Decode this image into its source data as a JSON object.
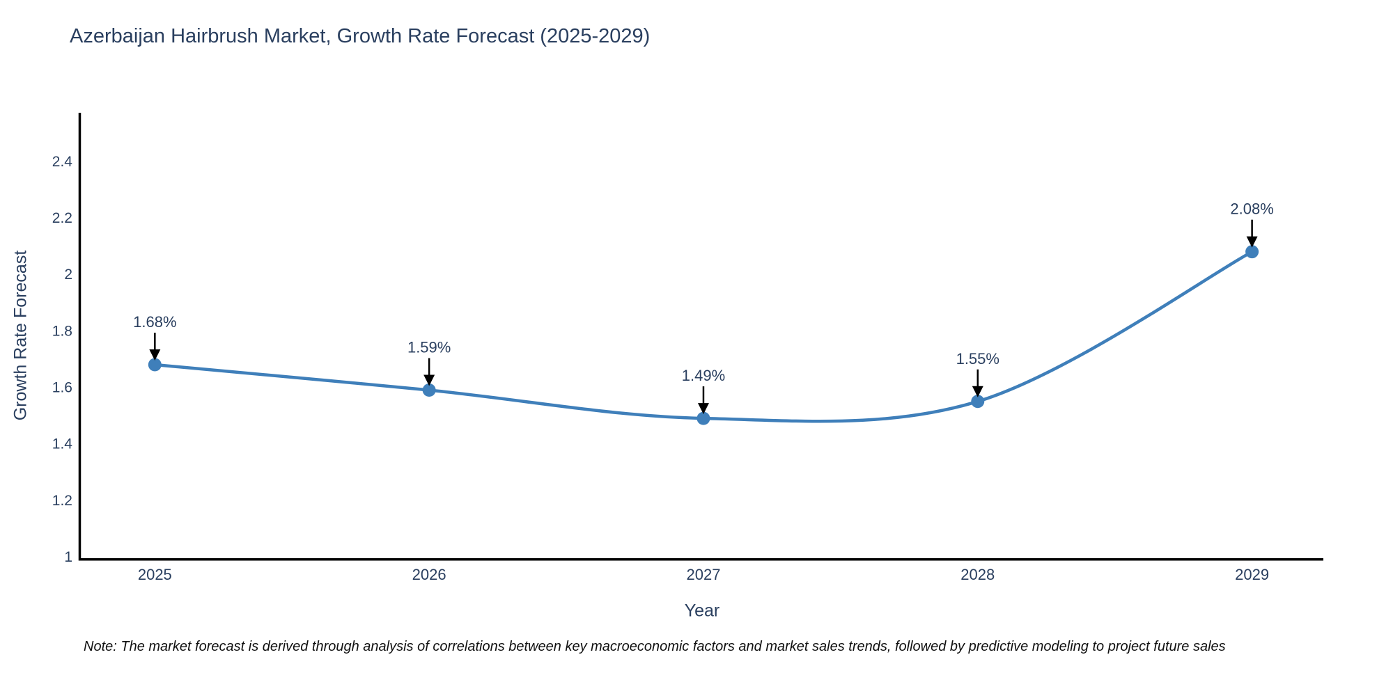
{
  "chart_data": {
    "type": "line",
    "title": "Azerbaijan Hairbrush Market, Growth Rate Forecast (2025-2029)",
    "xlabel": "Year",
    "ylabel": "Growth Rate Forecast",
    "x": [
      2025,
      2026,
      2027,
      2028,
      2029
    ],
    "values": [
      1.68,
      1.59,
      1.49,
      1.55,
      2.08
    ],
    "point_labels": [
      "1.68%",
      "1.59%",
      "1.49%",
      "1.55%",
      "2.08%"
    ],
    "series_name": "Growth Rate Forecast",
    "xtick_labels": [
      "2025",
      "2026",
      "2027",
      "2028",
      "2029"
    ],
    "ytick_values": [
      1,
      1.2,
      1.4,
      1.6,
      1.8,
      2,
      2.2,
      2.4
    ],
    "ytick_labels": [
      "1",
      "1.2",
      "1.4",
      "1.6",
      "1.8",
      "2",
      "2.2",
      "2.4"
    ],
    "xlim": [
      2024.73,
      2029.26
    ],
    "ylim": [
      0.995,
      2.572
    ],
    "grid": false,
    "legend": "none",
    "line_shape": "spline",
    "annotations_have_arrows": true,
    "colors": {
      "line": "#3f7fba",
      "marker": "#3f7fba",
      "axis_line": "#000000",
      "tick_text": "#2a3f5f",
      "title_text": "#2a3f5f",
      "annotation_text": "#2a3f5f",
      "arrow": "#000000",
      "background": "#ffffff"
    }
  },
  "note": {
    "text": "Note: The market forecast is derived through analysis of correlations between key macroeconomic factors and market sales trends, followed by predictive modeling to project future sales"
  }
}
